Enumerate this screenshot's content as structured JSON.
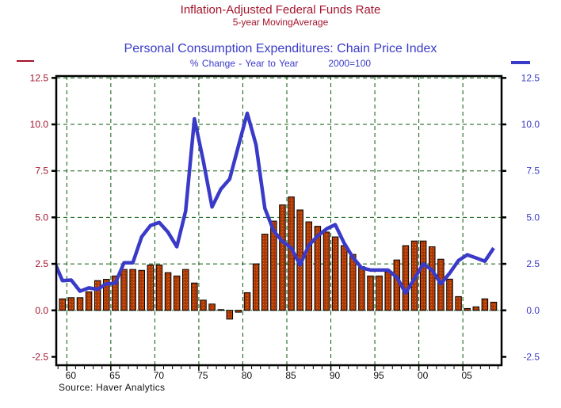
{
  "chart_data": {
    "type": "bar+line",
    "title": "Inflation-Adjusted Federal Funds Rate",
    "subtitle": "5-year MovingAverage",
    "title2": "Personal Consumption Expenditures: Chain Price Index",
    "subtitle2_left": "% Change - Year to Year",
    "subtitle2_right": "2000=100",
    "source": "Source: Haver Analytics",
    "xlim": [
      1958.8,
      2009.4
    ],
    "ylim": [
      -2.95,
      12.6
    ],
    "grid": true,
    "left_axis": {
      "ticks": [
        12.5,
        10.0,
        7.5,
        5.0,
        2.5,
        0.0,
        -2.5
      ],
      "labels": [
        "12.5",
        "10.0",
        "7.5",
        "5.0",
        "2.5",
        "0.0",
        "-2.5"
      ],
      "color": "#a3142c"
    },
    "right_axis": {
      "ticks": [
        12.5,
        10.0,
        7.5,
        5.0,
        2.5,
        0.0,
        -2.5
      ],
      "labels": [
        "12.5",
        "10.0",
        "7.5",
        "5.0",
        "2.5",
        "0.0",
        "-2.5"
      ],
      "color": "#3a3ac8"
    },
    "x_ticks": [
      1960,
      1965,
      1970,
      1975,
      1980,
      1985,
      1990,
      1995,
      2000,
      2005
    ],
    "x_tick_labels": [
      "60",
      "65",
      "70",
      "75",
      "80",
      "85",
      "90",
      "95",
      "00",
      "05"
    ],
    "series": [
      {
        "name": "Inflation-Adjusted Federal Funds Rate, 5-year Moving Average",
        "type": "bar",
        "axis": "left",
        "color": "#b23a06",
        "x": [
          1959,
          1960,
          1961,
          1962,
          1963,
          1964,
          1965,
          1966,
          1967,
          1968,
          1969,
          1970,
          1971,
          1972,
          1973,
          1974,
          1975,
          1976,
          1977,
          1978,
          1979,
          1980,
          1981,
          1982,
          1983,
          1984,
          1985,
          1986,
          1987,
          1988,
          1989,
          1990,
          1991,
          1992,
          1993,
          1994,
          1995,
          1996,
          1997,
          1998,
          1999,
          2000,
          2001,
          2002,
          2003,
          2004,
          2005,
          2006,
          2007,
          2008
        ],
        "values": [
          0.62,
          0.68,
          0.68,
          1.0,
          1.6,
          1.67,
          1.85,
          2.2,
          2.2,
          2.15,
          2.44,
          2.44,
          2.03,
          1.85,
          2.2,
          1.47,
          0.55,
          0.34,
          0.04,
          -0.47,
          -0.1,
          0.95,
          2.5,
          4.1,
          4.8,
          5.67,
          6.1,
          5.4,
          4.76,
          4.52,
          4.21,
          3.95,
          3.48,
          3.01,
          2.35,
          1.85,
          1.85,
          2.07,
          2.71,
          3.48,
          3.73,
          3.73,
          3.42,
          2.75,
          1.68,
          0.74,
          0.1,
          0.19,
          0.62,
          0.44
        ]
      },
      {
        "name": "Personal Consumption Expenditures: Chain Price Index, % Change - Year to Year",
        "type": "line",
        "axis": "right",
        "color": "#3a3ac8",
        "x": [
          1958,
          1959,
          1960,
          1961,
          1962,
          1963,
          1964,
          1965,
          1966,
          1967,
          1968,
          1969,
          1970,
          1971,
          1972,
          1973,
          1974,
          1975,
          1976,
          1977,
          1978,
          1979,
          1980,
          1981,
          1982,
          1983,
          1984,
          1985,
          1986,
          1987,
          1988,
          1989,
          1990,
          1991,
          1992,
          1993,
          1994,
          1995,
          1996,
          1997,
          1998,
          1999,
          2000,
          2001,
          2002,
          2003,
          2004,
          2005,
          2006,
          2007,
          2008
        ],
        "values": [
          2.7,
          1.6,
          1.63,
          1.03,
          1.21,
          1.13,
          1.43,
          1.45,
          2.56,
          2.56,
          3.95,
          4.56,
          4.73,
          4.2,
          3.42,
          5.34,
          10.3,
          8.06,
          5.56,
          6.52,
          7.06,
          8.84,
          10.6,
          8.9,
          5.49,
          4.28,
          3.71,
          3.36,
          2.44,
          3.5,
          4.0,
          4.38,
          4.61,
          3.63,
          2.85,
          2.28,
          2.17,
          2.17,
          2.17,
          1.78,
          0.93,
          1.71,
          2.5,
          2.17,
          1.43,
          2.0,
          2.68,
          2.99,
          2.82,
          2.64,
          3.35
        ]
      }
    ]
  }
}
